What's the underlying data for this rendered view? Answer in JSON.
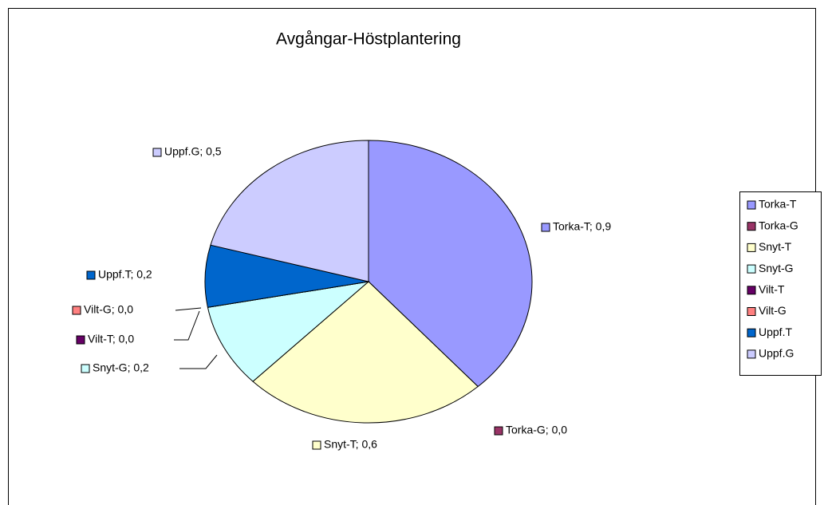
{
  "chart_data": {
    "type": "pie",
    "title": "Avgångar-Höstplantering",
    "categories": [
      "Torka-T",
      "Torka-G",
      "Snyt-T",
      "Snyt-G",
      "Vilt-T",
      "Vilt-G",
      "Uppf.T",
      "Uppf.G"
    ],
    "values": [
      0.92,
      0,
      0.58,
      0.23,
      0,
      0,
      0.17,
      0.5
    ],
    "value_labels": [
      "Torka-T; 0,9",
      "Torka-G; 0,0",
      "Snyt-T; 0,6",
      "Snyt-G; 0,2",
      "Vilt-T; 0,0",
      "Vilt-G; 0,0",
      "Uppf.T; 0,2",
      "Uppf.G; 0,5"
    ],
    "colors": [
      "#9999ff",
      "#993366",
      "#ffffcc",
      "#ccffff",
      "#660066",
      "#ff8080",
      "#0066cc",
      "#ccccff"
    ],
    "legend": "right"
  }
}
